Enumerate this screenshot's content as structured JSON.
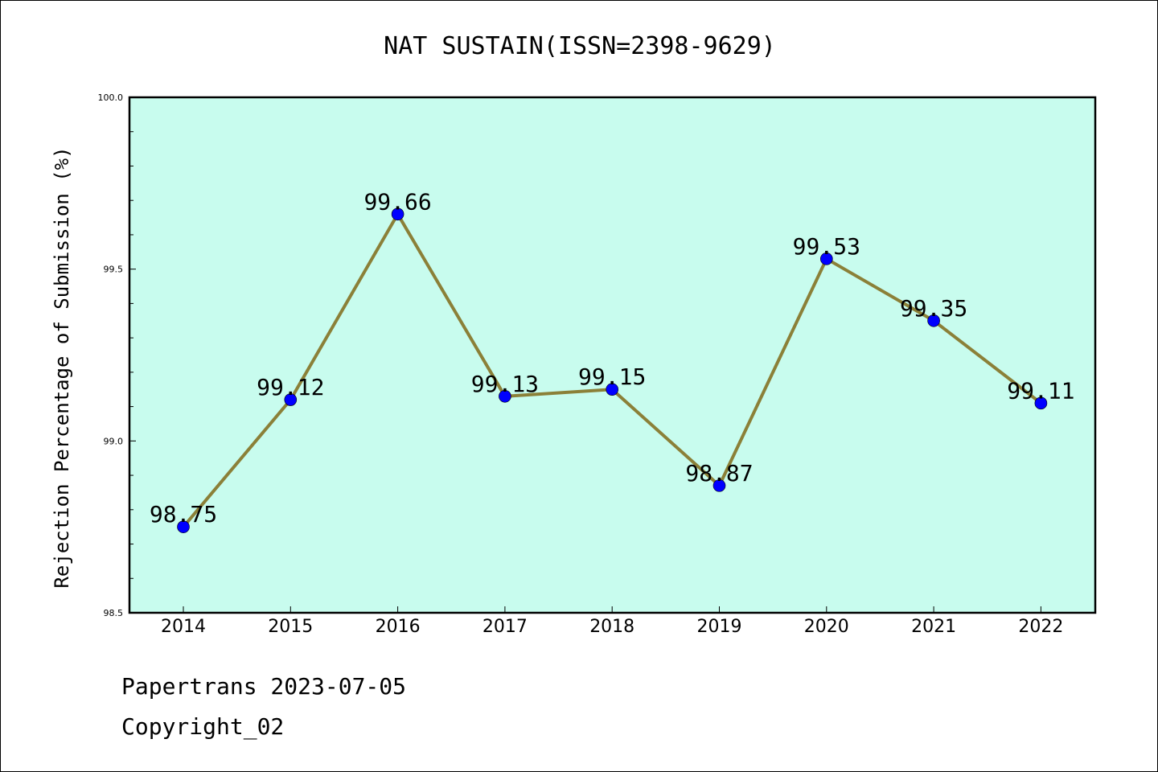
{
  "chart_data": {
    "type": "line",
    "title": "NAT SUSTAIN(ISSN=2398-9629)",
    "xlabel": "",
    "ylabel": "Rejection Percentage of Submission (%)",
    "categories": [
      "2014",
      "2015",
      "2016",
      "2017",
      "2018",
      "2019",
      "2020",
      "2021",
      "2022"
    ],
    "values": [
      98.75,
      99.12,
      99.66,
      99.13,
      99.15,
      98.87,
      99.53,
      99.35,
      99.11
    ],
    "data_labels": [
      "98.75",
      "99.12",
      "99.66",
      "99.13",
      "99.15",
      "98.87",
      "99.53",
      "99.35",
      "99.11"
    ],
    "ylim": [
      98.5,
      100.0
    ],
    "yticks": [
      "98.5",
      "99.0",
      "99.5",
      "100.0"
    ],
    "grid": false,
    "colors": {
      "plot_background": "#c8fcee",
      "line": "#8b8038",
      "marker": "#0000ff"
    }
  },
  "footer": {
    "line1": "Papertrans 2023-07-05",
    "line2": "Copyright_02"
  }
}
